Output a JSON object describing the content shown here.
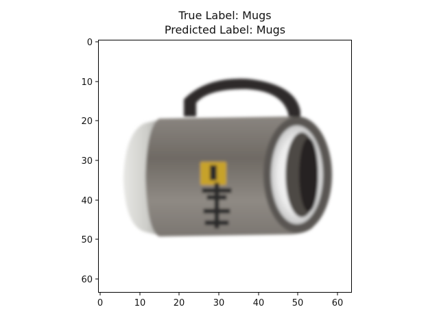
{
  "figure": {
    "title_line1": "True Label: Mugs",
    "title_line2": "Predicted Label: Mugs"
  },
  "axes": {
    "x_ticks": [
      "0",
      "10",
      "20",
      "30",
      "40",
      "50",
      "60"
    ],
    "y_ticks": [
      "0",
      "10",
      "20",
      "30",
      "40",
      "50",
      "60"
    ]
  },
  "image": {
    "subject": "mug",
    "background_color": "#ffffff",
    "body_color": "#7e7974",
    "handle_color": "#2d2b2a",
    "rim_color": "#5a5752",
    "base_color": "#cfcfcb",
    "emblem_color": "#c7a22a",
    "emblem_accent_color": "#2a2a2a"
  }
}
